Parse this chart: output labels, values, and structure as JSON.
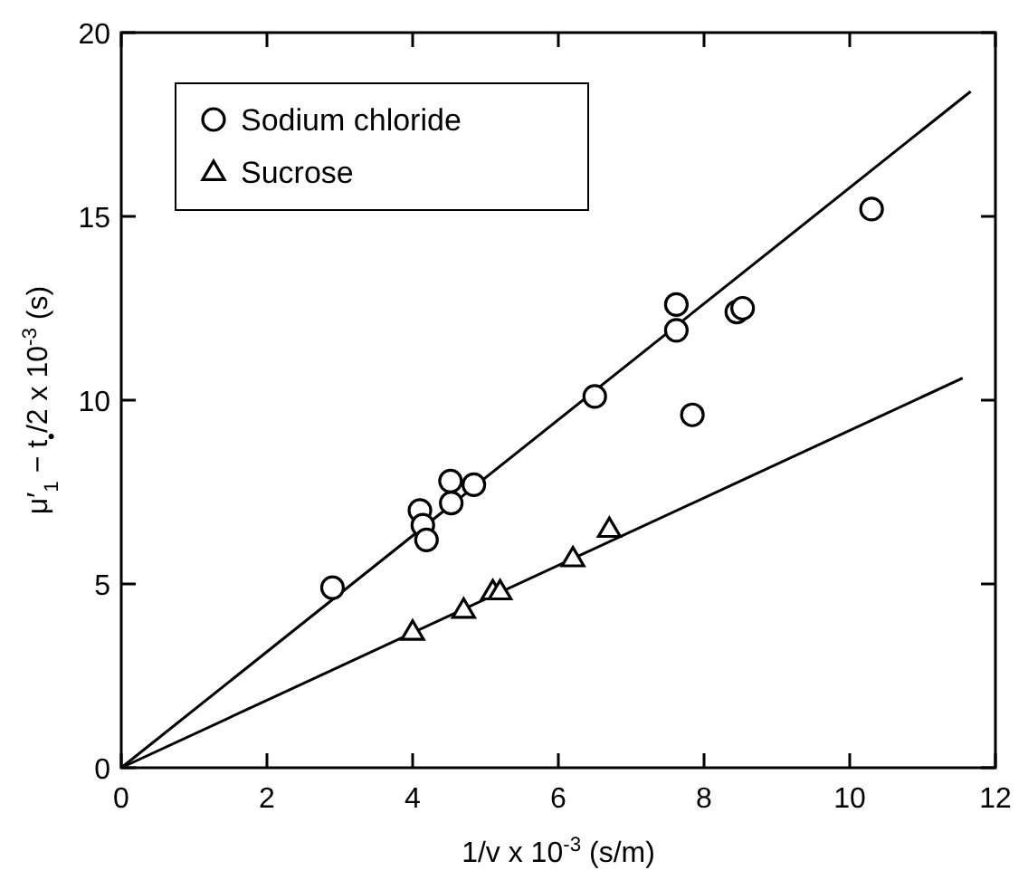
{
  "chart_data": {
    "type": "scatter",
    "xlabel": "1/v x 10$^{-3}$ (s/m)",
    "ylabel": "μ′$_{1}$ − t$_{•}$/2 x 10$^{-3}$ (s)",
    "xlim": [
      0,
      12
    ],
    "ylim": [
      0,
      20
    ],
    "xticks": [
      0,
      2,
      4,
      6,
      8,
      10,
      12
    ],
    "yticks": [
      0,
      5,
      10,
      15,
      20
    ],
    "legend": "top left",
    "grid": false,
    "series": [
      {
        "name": "Sodium chloride",
        "marker": "circle",
        "color": "#000000",
        "x": [
          2.9,
          4.1,
          4.14,
          4.19,
          4.52,
          4.53,
          4.84,
          6.5,
          7.62,
          7.62,
          7.84,
          8.45,
          8.53,
          10.3
        ],
        "values": [
          4.9,
          7.0,
          6.6,
          6.2,
          7.8,
          7.2,
          7.7,
          10.1,
          12.6,
          11.9,
          9.6,
          12.4,
          12.5,
          15.2
        ]
      },
      {
        "name": "Sucrose",
        "marker": "triangle",
        "color": "#000000",
        "x": [
          4.0,
          4.7,
          5.1,
          5.2,
          6.2,
          6.7
        ],
        "values": [
          3.7,
          4.3,
          4.8,
          4.8,
          5.7,
          6.5
        ]
      },
      {
        "type": "line",
        "color": "#000000",
        "x": [
          0,
          11.66
        ],
        "values": [
          0,
          18.4
        ]
      },
      {
        "type": "line",
        "color": "#000000",
        "x": [
          0,
          11.55
        ],
        "values": [
          0,
          10.6
        ]
      }
    ]
  }
}
